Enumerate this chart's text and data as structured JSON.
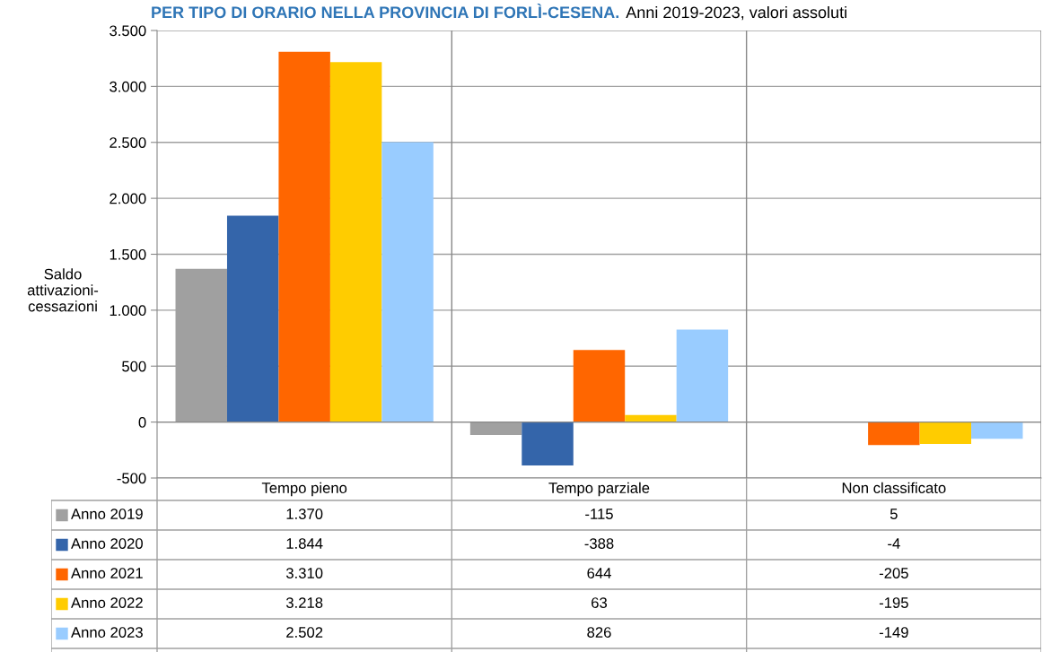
{
  "chart_data": {
    "type": "bar",
    "title": "PER TIPO DI ORARIO NELLA PROVINCIA DI FORLÌ-CESENA.",
    "subtitle": "Anni 2019-2023, valori assoluti",
    "ylabel": "Saldo\nattivazioni-\ncessazioni",
    "categories": [
      "Tempo pieno",
      "Tempo parziale",
      "Non classificato"
    ],
    "series": [
      {
        "name": "Anno 2019",
        "color": "#a0a0a0",
        "values": [
          1370,
          -115,
          5
        ],
        "value_labels": [
          "1.370",
          "-115",
          "5"
        ]
      },
      {
        "name": "Anno 2020",
        "color": "#3465aa",
        "values": [
          1844,
          -388,
          -4
        ],
        "value_labels": [
          "1.844",
          "-388",
          "-4"
        ]
      },
      {
        "name": "Anno 2021",
        "color": "#ff6600",
        "values": [
          3310,
          644,
          -205
        ],
        "value_labels": [
          "3.310",
          "644",
          "-205"
        ]
      },
      {
        "name": "Anno 2022",
        "color": "#ffcc00",
        "values": [
          3218,
          63,
          -195
        ],
        "value_labels": [
          "3.218",
          "63",
          "-195"
        ]
      },
      {
        "name": "Anno 2023",
        "color": "#99ccff",
        "values": [
          2502,
          826,
          -149
        ],
        "value_labels": [
          "2.502",
          "826",
          "-149"
        ]
      }
    ],
    "ylim": [
      -500,
      3500
    ],
    "yticks": [
      {
        "value": -500,
        "label": "-500"
      },
      {
        "value": 0,
        "label": "0"
      },
      {
        "value": 500,
        "label": "500"
      },
      {
        "value": 1000,
        "label": "1.000"
      },
      {
        "value": 1500,
        "label": "1.500"
      },
      {
        "value": 2000,
        "label": "2.000"
      },
      {
        "value": 2500,
        "label": "2.500"
      },
      {
        "value": 3000,
        "label": "3.000"
      },
      {
        "value": 3500,
        "label": "3.500"
      }
    ],
    "grid": "y",
    "legend": "bottom"
  }
}
